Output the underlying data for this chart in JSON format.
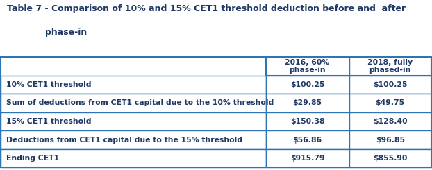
{
  "title_line1": "Table 7 - Comparison of 10% and 15% CET1 threshold deduction before and  after",
  "title_line2": "phase-in",
  "col_headers": [
    "2016, 60%\nphase-in",
    "2018, fully\nphased-in"
  ],
  "row_labels": [
    "10% CET1 threshold",
    "Sum of deductions from CET1 capital due to the 10% threshold",
    "15% CET1 threshold",
    "Deductions from CET1 capital due to the 15% threshold",
    "Ending CET1"
  ],
  "col1_values": [
    "$100.25",
    "$29.85",
    "$150.38",
    "$56.86",
    "$915.79"
  ],
  "col2_values": [
    "$100.25",
    "$49.75",
    "$128.40",
    "$96.85",
    "$855.90"
  ],
  "row_bg": "#FFFFFF",
  "text_color": "#1F3864",
  "border_color": "#2E75B6",
  "title_color": "#1F3864",
  "outer_bg": "#FFFFFF",
  "col_splits": [
    0.615,
    0.808
  ],
  "title_fontsize": 9.0,
  "data_fontsize": 7.8,
  "header_fontsize": 7.8
}
